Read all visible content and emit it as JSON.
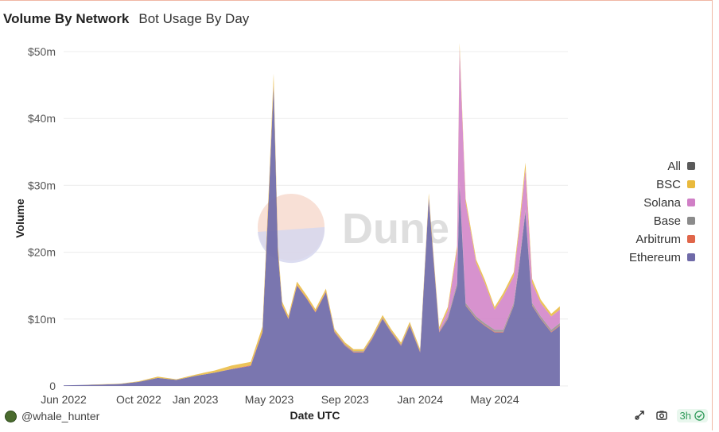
{
  "header": {
    "title": "Volume By Network",
    "subtitle": "Bot Usage By Day"
  },
  "watermark": "Dune",
  "footer": {
    "username": "@whale_hunter",
    "refresh_label": "3h"
  },
  "chart_data": {
    "type": "area",
    "stacked": true,
    "xlabel": "Date UTC",
    "ylabel": "Volume",
    "x_ticks": [
      "Jun 2022",
      "Oct 2022",
      "Jan 2023",
      "May 2023",
      "Sep 2023",
      "Jan 2024",
      "May 2024"
    ],
    "y_ticks": [
      "0",
      "$10m",
      "$20m",
      "$30m",
      "$40m",
      "$50m"
    ],
    "ylim": [
      0,
      50000000
    ],
    "grid": true,
    "legend_position": "right",
    "legend": [
      "All",
      "BSC",
      "Solana",
      "Base",
      "Arbitrum",
      "Ethereum"
    ],
    "colors": {
      "All": "#5a5a5a",
      "BSC": "#e9b93c",
      "Solana": "#d07fc6",
      "Base": "#8b8b8b",
      "Arbitrum": "#e0664a",
      "Ethereum": "#6f6aa8"
    },
    "x": [
      "2022-06-01",
      "2022-07-01",
      "2022-08-01",
      "2022-09-01",
      "2022-10-01",
      "2022-11-01",
      "2022-12-01",
      "2023-01-01",
      "2023-02-01",
      "2023-03-01",
      "2023-04-01",
      "2023-04-20",
      "2023-05-01",
      "2023-05-08",
      "2023-05-15",
      "2023-05-22",
      "2023-06-01",
      "2023-06-15",
      "2023-07-01",
      "2023-07-15",
      "2023-08-01",
      "2023-08-15",
      "2023-09-01",
      "2023-09-15",
      "2023-10-01",
      "2023-10-15",
      "2023-11-01",
      "2023-11-15",
      "2023-12-01",
      "2023-12-15",
      "2024-01-01",
      "2024-01-15",
      "2024-02-01",
      "2024-02-15",
      "2024-03-01",
      "2024-03-05",
      "2024-03-15",
      "2024-04-01",
      "2024-04-15",
      "2024-05-01",
      "2024-05-15",
      "2024-06-01",
      "2024-06-10",
      "2024-06-20",
      "2024-07-01",
      "2024-07-15",
      "2024-08-01",
      "2024-08-15"
    ],
    "series": [
      {
        "name": "Ethereum",
        "values": [
          100000,
          150000,
          200000,
          300000,
          600000,
          1200000,
          900000,
          1500000,
          2000000,
          2500000,
          3000000,
          8000000,
          30000000,
          45000000,
          20000000,
          12000000,
          10000000,
          15000000,
          13000000,
          11000000,
          14000000,
          8000000,
          6000000,
          5000000,
          5000000,
          7000000,
          10000000,
          8000000,
          6000000,
          9000000,
          5000000,
          28000000,
          8000000,
          10000000,
          15000000,
          30000000,
          12000000,
          10000000,
          9000000,
          8000000,
          8000000,
          12000000,
          18000000,
          26000000,
          12000000,
          10000000,
          8000000,
          9000000
        ]
      },
      {
        "name": "Arbitrum",
        "values": [
          0,
          0,
          0,
          0,
          0,
          0,
          0,
          0,
          0,
          50000,
          100000,
          100000,
          200000,
          200000,
          150000,
          100000,
          100000,
          100000,
          100000,
          100000,
          100000,
          100000,
          100000,
          100000,
          100000,
          100000,
          100000,
          100000,
          100000,
          100000,
          100000,
          100000,
          100000,
          100000,
          100000,
          100000,
          100000,
          100000,
          100000,
          100000,
          100000,
          100000,
          100000,
          100000,
          100000,
          100000,
          100000,
          100000
        ]
      },
      {
        "name": "Base",
        "values": [
          0,
          0,
          0,
          0,
          0,
          0,
          0,
          0,
          0,
          0,
          0,
          0,
          0,
          0,
          0,
          0,
          0,
          0,
          0,
          0,
          50000,
          100000,
          100000,
          100000,
          100000,
          100000,
          100000,
          100000,
          100000,
          100000,
          100000,
          100000,
          100000,
          200000,
          300000,
          400000,
          300000,
          300000,
          300000,
          300000,
          300000,
          300000,
          300000,
          300000,
          300000,
          300000,
          300000,
          300000
        ]
      },
      {
        "name": "Solana",
        "values": [
          0,
          0,
          0,
          0,
          0,
          0,
          0,
          0,
          0,
          0,
          0,
          0,
          0,
          0,
          0,
          0,
          0,
          0,
          0,
          0,
          0,
          0,
          0,
          0,
          0,
          0,
          0,
          0,
          0,
          0,
          0,
          100000,
          200000,
          1000000,
          5000000,
          20000000,
          15000000,
          8000000,
          6000000,
          3000000,
          5000000,
          4000000,
          5000000,
          6000000,
          3000000,
          2000000,
          2000000,
          2000000
        ]
      },
      {
        "name": "BSC",
        "values": [
          0,
          0,
          50000,
          50000,
          100000,
          200000,
          100000,
          200000,
          300000,
          500000,
          500000,
          800000,
          1000000,
          1500000,
          800000,
          500000,
          400000,
          500000,
          400000,
          400000,
          400000,
          300000,
          300000,
          300000,
          300000,
          300000,
          400000,
          300000,
          300000,
          400000,
          300000,
          500000,
          400000,
          500000,
          600000,
          800000,
          600000,
          500000,
          500000,
          400000,
          500000,
          600000,
          800000,
          1000000,
          600000,
          500000,
          400000,
          500000
        ]
      }
    ]
  }
}
